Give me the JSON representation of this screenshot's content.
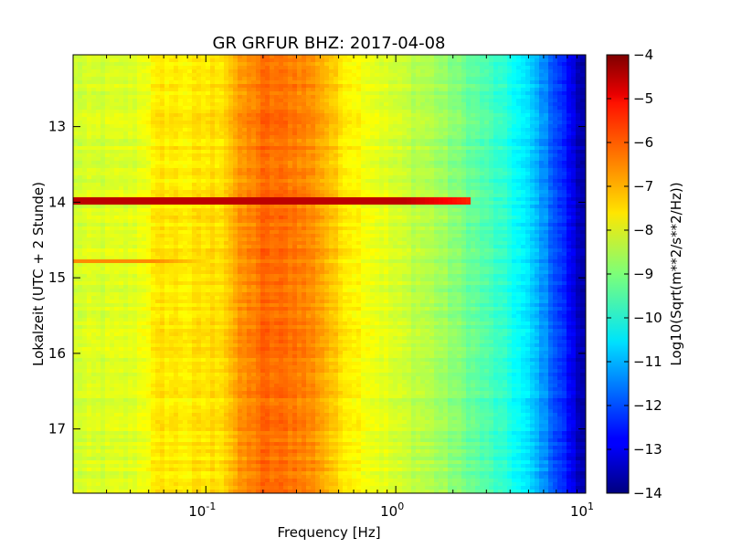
{
  "chart_data": {
    "type": "heatmap",
    "title": "GR GRFUR BHZ: 2017-04-08",
    "xlabel": "Frequency [Hz]",
    "ylabel": "Lokalzeit (UTC + 2 Stunde)",
    "colorbar_label": "Log10(Sqrt(m**2/s**2/Hz))",
    "x_scale": "log",
    "x_range": [
      0.02,
      10
    ],
    "y_range": [
      12.05,
      17.85
    ],
    "y_inverted": true,
    "x_ticks": [
      {
        "value": 0.1,
        "base": "10",
        "exp": "-1"
      },
      {
        "value": 1,
        "base": "10",
        "exp": "0"
      },
      {
        "value": 10,
        "base": "10",
        "exp": "1"
      }
    ],
    "y_ticks": [
      13,
      14,
      15,
      16,
      17
    ],
    "y_tick_labels": [
      "13",
      "14",
      "15",
      "16",
      "17"
    ],
    "color_range": [
      -14,
      -4
    ],
    "colorbar_ticks": [
      -4,
      -5,
      -6,
      -7,
      -8,
      -9,
      -10,
      -11,
      -12,
      -13,
      -14
    ],
    "colorbar_tick_labels": [
      "−4",
      "−5",
      "−6",
      "−7",
      "−8",
      "−9",
      "−10",
      "−11",
      "−12",
      "−13",
      "−14"
    ],
    "colormap": "jet",
    "spectrum_profile": {
      "frequency_hz": [
        0.02,
        0.04,
        0.06,
        0.08,
        0.1,
        0.12,
        0.15,
        0.2,
        0.3,
        0.4,
        0.5,
        0.7,
        1.0,
        1.5,
        2.0,
        3.0,
        4.0,
        5.0,
        6.0,
        7.0,
        8.0,
        9.0,
        10.0
      ],
      "log10_amplitude": [
        -8.2,
        -8.1,
        -7.5,
        -7.6,
        -7.5,
        -7.4,
        -6.8,
        -6.3,
        -6.4,
        -6.8,
        -7.4,
        -7.8,
        -8.2,
        -8.5,
        -8.9,
        -9.5,
        -10.0,
        -10.6,
        -11.3,
        -12.0,
        -12.6,
        -13.3,
        -13.8
      ]
    },
    "events": [
      {
        "time": 13.98,
        "log10_amplitude_peak": -4.6,
        "freq_max_hz": 2.5,
        "description": "strong broadband band"
      },
      {
        "time": 14.78,
        "log10_amplitude_peak": -6.6,
        "freq_max_hz": 0.12,
        "description": "weak band"
      }
    ]
  }
}
